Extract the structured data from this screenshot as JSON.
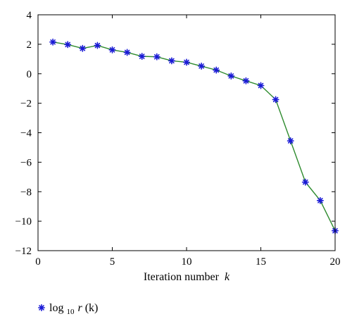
{
  "chart_data": {
    "type": "line",
    "xlabel": "Iteration number",
    "xlabel_var": "k",
    "ylabel": "",
    "xlim": [
      0,
      20
    ],
    "ylim": [
      -12,
      4
    ],
    "x_ticks": [
      0,
      5,
      10,
      15,
      20
    ],
    "y_ticks": [
      4,
      2,
      0,
      -2,
      -4,
      -6,
      -8,
      -10,
      -12
    ],
    "grid": false,
    "legend_position": "bottom-left",
    "series": [
      {
        "name": "log10r (k)",
        "legend": {
          "prefix": "log",
          "subscript": "10",
          "var": "r",
          "suffix": " (k)"
        },
        "line_color": "#2e8b2e",
        "marker_color": "#1a1ad6",
        "marker": "asterisk",
        "x": [
          1,
          2,
          3,
          4,
          5,
          6,
          7,
          8,
          9,
          10,
          11,
          12,
          13,
          14,
          15,
          16,
          17,
          18,
          19,
          20
        ],
        "y": [
          2.15,
          1.98,
          1.72,
          1.92,
          1.62,
          1.45,
          1.18,
          1.15,
          0.88,
          0.78,
          0.52,
          0.25,
          -0.15,
          -0.48,
          -0.8,
          -1.75,
          -4.55,
          -7.35,
          -8.6,
          -10.65
        ]
      }
    ]
  }
}
